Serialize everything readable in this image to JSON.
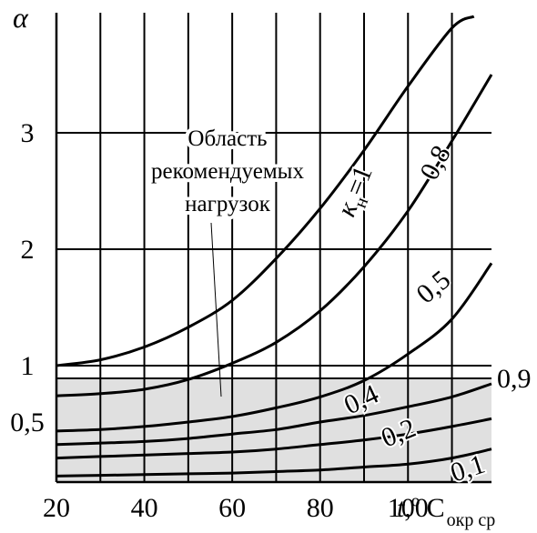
{
  "chart_data": {
    "type": "line",
    "title": "",
    "ylabel": "α",
    "xlabel": "t,º C",
    "xlabel_sub": "окр ср",
    "xlim": [
      20,
      119
    ],
    "ylim": [
      0.1,
      4.0
    ],
    "x_ticks": [
      20,
      40,
      60,
      80,
      100
    ],
    "x_tick_labels": [
      "20",
      "40",
      "60",
      "80",
      "100"
    ],
    "y_ticks": [
      0.5,
      1,
      2,
      3
    ],
    "y_tick_labels": [
      "0,5",
      "1",
      "2",
      "3"
    ],
    "vertical_grid_step": 10,
    "horizontal_grid": [
      0.9,
      1,
      2,
      3
    ],
    "grid": true,
    "recommended_region": {
      "y_range": [
        0.1,
        0.9
      ],
      "label_lines": [
        "Область",
        "рекомендуемых",
        "нагрузок"
      ],
      "boundary_label": "0,9",
      "fill_color": "#e0e0e0"
    },
    "series": [
      {
        "name": "к",
        "sub": "н",
        "suffix": "=1",
        "x": [
          20,
          30,
          40,
          50,
          60,
          70,
          80,
          90,
          100,
          110,
          115
        ],
        "y": [
          1.0,
          1.05,
          1.16,
          1.33,
          1.56,
          1.92,
          2.35,
          2.85,
          3.4,
          3.9,
          4.0
        ]
      },
      {
        "name": "0,8",
        "x": [
          20,
          30,
          40,
          50,
          60,
          70,
          80,
          90,
          100,
          110,
          119
        ],
        "y": [
          0.74,
          0.76,
          0.8,
          0.89,
          1.02,
          1.2,
          1.47,
          1.85,
          2.33,
          2.93,
          3.5
        ]
      },
      {
        "name": "0,5",
        "x": [
          20,
          30,
          40,
          50,
          60,
          70,
          80,
          90,
          100,
          110,
          119
        ],
        "y": [
          0.44,
          0.45,
          0.47,
          0.5,
          0.55,
          0.63,
          0.73,
          0.88,
          1.1,
          1.4,
          1.88
        ]
      },
      {
        "name": "0,4",
        "x": [
          20,
          30,
          40,
          50,
          60,
          70,
          80,
          90,
          100,
          110,
          119
        ],
        "y": [
          0.35,
          0.36,
          0.37,
          0.39,
          0.42,
          0.45,
          0.5,
          0.56,
          0.64,
          0.73,
          0.85
        ]
      },
      {
        "name": "0,2",
        "x": [
          20,
          30,
          40,
          50,
          60,
          70,
          80,
          90,
          100,
          110,
          119
        ],
        "y": [
          0.26,
          0.27,
          0.28,
          0.29,
          0.3,
          0.32,
          0.35,
          0.38,
          0.42,
          0.47,
          0.53
        ]
      },
      {
        "name": "0,1",
        "x": [
          20,
          30,
          40,
          50,
          60,
          70,
          80,
          90,
          100,
          110,
          119
        ],
        "y": [
          0.14,
          0.145,
          0.15,
          0.155,
          0.16,
          0.17,
          0.18,
          0.2,
          0.22,
          0.26,
          0.32
        ]
      }
    ],
    "legend": "inline labels on curves"
  }
}
